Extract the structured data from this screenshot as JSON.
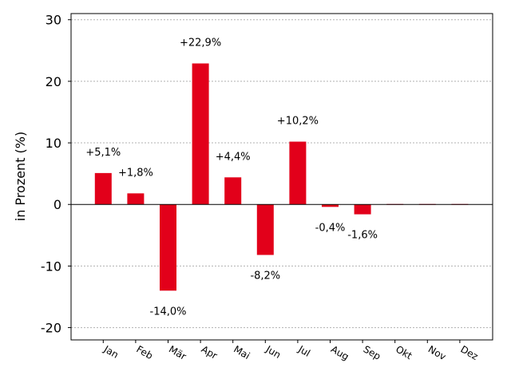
{
  "chart_data": {
    "type": "bar",
    "title": "",
    "xlabel": "",
    "ylabel": "in Prozent (%)",
    "categories": [
      "Jan",
      "Feb",
      "Mär",
      "Apr",
      "Mai",
      "Jun",
      "Jul",
      "Aug",
      "Sep",
      "Okt",
      "Nov",
      "Dez"
    ],
    "values": [
      5.1,
      1.8,
      -14.0,
      22.9,
      4.4,
      -8.2,
      10.2,
      -0.4,
      -1.6,
      0,
      0,
      0
    ],
    "data_labels": [
      "+5,1%",
      "+1,8%",
      "-14,0%",
      "+22,9%",
      "+4,4%",
      "-8,2%",
      "+10,2%",
      "-0,4%",
      "-1,6%",
      "",
      "",
      ""
    ],
    "yticks": [
      -20,
      -10,
      0,
      10,
      20,
      30
    ],
    "ytick_labels": [
      "-20",
      "-10",
      "0",
      "10",
      "20",
      "30"
    ],
    "ylim": [
      -22,
      31
    ],
    "grid": true,
    "bar_color": "#e2001a"
  }
}
